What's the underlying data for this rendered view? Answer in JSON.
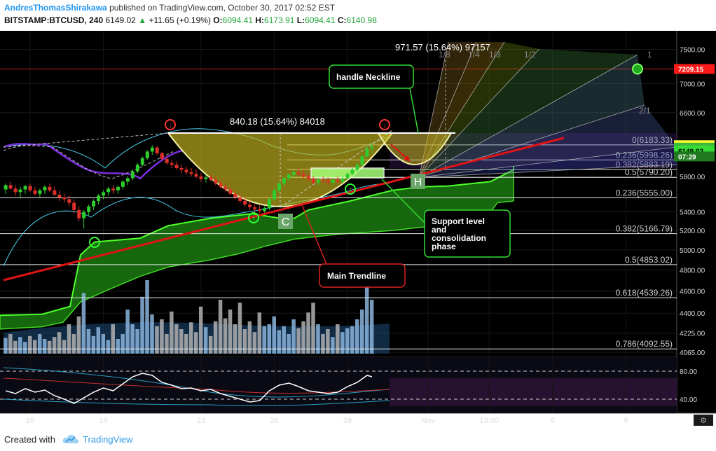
{
  "header": {
    "author": "AndresThomasShirakawa",
    "published": "published on TradingView.com, October 30, 2017 02:52 EST",
    "symbol": "BITSTAMP:BTCUSD, 240",
    "last": "6149.02",
    "change": "+11.65 (+0.19%)",
    "o_label": "O:",
    "o_value": "6094.41",
    "h_label": "H:",
    "h_value": "6173.91",
    "l_label": "L:",
    "l_value": "6094.41",
    "c_label": "C:",
    "c_value": "6140.98"
  },
  "footer": {
    "created_with": "Created with",
    "brand": "TradingView"
  },
  "colors": {
    "background": "#000000",
    "cloud": "#1a7a10",
    "cloud_edge": "#4cff2a",
    "trendline": "#e01414",
    "cup": "#c9b81e",
    "candle_up": "#2ecc2e",
    "candle_down": "#e0302a",
    "rsi_line": "#ffffff",
    "price_label_bg": "#ffff33",
    "alert_bg": "#ff1a1a"
  },
  "chart_data": {
    "type": "candlestick",
    "price_axis": {
      "scale": "log",
      "range": [
        4065,
        7700
      ],
      "ticks": [
        "7500.00",
        "7000.00",
        "6600.00",
        "5800.00",
        "5400.00",
        "5200.00",
        "5000.00",
        "4800.00",
        "4600.00",
        "4400.00",
        "4225.00",
        "4065.00"
      ]
    },
    "price_labels": [
      {
        "text": "7209.15",
        "price": 7209.15,
        "bg": "#ff1a1a",
        "color": "#ffffff"
      },
      {
        "text": "6179.66",
        "price": 6179.66,
        "bg": "#ffff33",
        "color": "#000000"
      },
      {
        "text": "BTCUSD",
        "price": 6149.02,
        "bg": "#3cba3c",
        "color": "#ffffff"
      },
      {
        "text": "6149.02",
        "price": 6110,
        "bg": "#33dd33",
        "color": "#000000"
      },
      {
        "text": "07:29",
        "price": 6040,
        "bg": "#1f7a1f",
        "color": "#ffffff"
      }
    ],
    "time_axis": {
      "labels": [
        {
          "text": "16",
          "x_day": 16
        },
        {
          "text": "19",
          "x_day": 19
        },
        {
          "text": "23",
          "x_day": 23
        },
        {
          "text": "26",
          "x_day": 26
        },
        {
          "text": "29",
          "x_day": 29
        },
        {
          "text": "Nov",
          "x_day": 32.3
        },
        {
          "text": "13:00",
          "x_day": 34.8
        },
        {
          "text": "6",
          "x_day": 37.4
        },
        {
          "text": "9",
          "x_day": 40.4
        }
      ]
    },
    "fib_levels": [
      {
        "label": "0(6183.33)",
        "price": 6183.33
      },
      {
        "label": "0.236(5998.26)",
        "price": 5998.26
      },
      {
        "label": "0.382(5883.19)",
        "price": 5883.19
      },
      {
        "label": "0.5(5790.20)",
        "price": 5790.2
      },
      {
        "label": "0.236(5555.00)",
        "price": 5555.0
      },
      {
        "label": "0.382(5166.79)",
        "price": 5166.79
      },
      {
        "label": "0.5(4853.02)",
        "price": 4853.02
      },
      {
        "label": "0.618(4539.26)",
        "price": 4539.26
      },
      {
        "label": "0.786(4092.55)",
        "price": 4092.55
      }
    ],
    "measurements": [
      {
        "text": "840.18 (15.64%) 84018",
        "x_day": 26.0,
        "price": 6500
      },
      {
        "text": "971.57 (15.64%) 97157",
        "x_day": 31.2,
        "price": 7470
      }
    ],
    "fan_labels": [
      "1/8",
      "1/4",
      "1/3",
      "1/2",
      "1",
      "2/1"
    ],
    "callouts": [
      {
        "text": "handle Neckline"
      },
      {
        "text": "Support level and consolidation phase"
      },
      {
        "text": "Main Trendline"
      }
    ],
    "pattern_letters": [
      "C",
      "H"
    ],
    "rsi": {
      "ticks": [
        "80.00",
        "40.00"
      ],
      "range": [
        20,
        100
      ]
    },
    "candles": [
      [
        15.0,
        5650,
        5720,
        5600,
        5700
      ],
      [
        15.2,
        5700,
        5740,
        5650,
        5660
      ],
      [
        15.4,
        5660,
        5700,
        5580,
        5620
      ],
      [
        15.6,
        5620,
        5680,
        5560,
        5650
      ],
      [
        15.8,
        5650,
        5700,
        5600,
        5690
      ],
      [
        16.0,
        5690,
        5720,
        5620,
        5640
      ],
      [
        16.2,
        5640,
        5680,
        5580,
        5600
      ],
      [
        16.4,
        5600,
        5660,
        5560,
        5640
      ],
      [
        16.6,
        5640,
        5700,
        5600,
        5680
      ],
      [
        16.8,
        5680,
        5720,
        5620,
        5640
      ],
      [
        17.0,
        5640,
        5680,
        5580,
        5590
      ],
      [
        17.2,
        5590,
        5640,
        5520,
        5560
      ],
      [
        17.4,
        5560,
        5600,
        5500,
        5540
      ],
      [
        17.6,
        5540,
        5580,
        5460,
        5500
      ],
      [
        17.8,
        5500,
        5540,
        5380,
        5420
      ],
      [
        18.0,
        5420,
        5460,
        5300,
        5330
      ],
      [
        18.2,
        5330,
        5420,
        5220,
        5400
      ],
      [
        18.4,
        5400,
        5480,
        5360,
        5460
      ],
      [
        18.6,
        5460,
        5540,
        5420,
        5520
      ],
      [
        18.8,
        5520,
        5600,
        5480,
        5580
      ],
      [
        19.0,
        5580,
        5640,
        5540,
        5620
      ],
      [
        19.2,
        5620,
        5680,
        5580,
        5660
      ],
      [
        19.4,
        5660,
        5700,
        5600,
        5640
      ],
      [
        19.6,
        5640,
        5700,
        5600,
        5680
      ],
      [
        19.8,
        5680,
        5760,
        5650,
        5740
      ],
      [
        20.0,
        5740,
        5800,
        5700,
        5780
      ],
      [
        20.2,
        5780,
        5880,
        5760,
        5860
      ],
      [
        20.4,
        5860,
        5960,
        5840,
        5940
      ],
      [
        20.6,
        5940,
        6040,
        5920,
        6020
      ],
      [
        20.8,
        6020,
        6120,
        6000,
        6100
      ],
      [
        21.0,
        6100,
        6180,
        6060,
        6150
      ],
      [
        21.2,
        6150,
        6170,
        6060,
        6080
      ],
      [
        21.4,
        6080,
        6100,
        5990,
        6010
      ],
      [
        21.6,
        6010,
        6040,
        5940,
        5960
      ],
      [
        21.8,
        5960,
        6000,
        5900,
        5940
      ],
      [
        22.0,
        5940,
        5980,
        5880,
        5900
      ],
      [
        22.2,
        5900,
        5940,
        5840,
        5880
      ],
      [
        22.4,
        5880,
        5920,
        5820,
        5850
      ],
      [
        22.6,
        5850,
        5900,
        5800,
        5830
      ],
      [
        22.8,
        5830,
        5880,
        5780,
        5800
      ],
      [
        23.0,
        5800,
        5840,
        5740,
        5770
      ],
      [
        23.2,
        5770,
        5820,
        5730,
        5790
      ],
      [
        23.4,
        5790,
        5830,
        5740,
        5760
      ],
      [
        23.6,
        5760,
        5800,
        5700,
        5720
      ],
      [
        23.8,
        5720,
        5760,
        5660,
        5680
      ],
      [
        24.0,
        5680,
        5720,
        5620,
        5650
      ],
      [
        24.2,
        5650,
        5680,
        5580,
        5600
      ],
      [
        24.4,
        5600,
        5640,
        5540,
        5560
      ],
      [
        24.6,
        5560,
        5600,
        5500,
        5520
      ],
      [
        24.8,
        5520,
        5560,
        5460,
        5480
      ],
      [
        25.0,
        5480,
        5520,
        5420,
        5450
      ],
      [
        25.2,
        5450,
        5480,
        5400,
        5430
      ],
      [
        25.4,
        5430,
        5470,
        5390,
        5410
      ],
      [
        25.6,
        5410,
        5460,
        5390,
        5440
      ],
      [
        25.8,
        5440,
        5560,
        5420,
        5540
      ],
      [
        26.0,
        5540,
        5660,
        5520,
        5640
      ],
      [
        26.2,
        5640,
        5740,
        5620,
        5720
      ],
      [
        26.4,
        5720,
        5800,
        5690,
        5780
      ],
      [
        26.6,
        5780,
        5840,
        5740,
        5820
      ],
      [
        26.8,
        5820,
        5880,
        5780,
        5850
      ],
      [
        27.0,
        5850,
        5900,
        5800,
        5830
      ],
      [
        27.2,
        5830,
        5880,
        5780,
        5800
      ],
      [
        27.4,
        5800,
        5840,
        5750,
        5770
      ],
      [
        27.6,
        5770,
        5800,
        5710,
        5730
      ],
      [
        27.8,
        5730,
        5780,
        5700,
        5760
      ],
      [
        28.0,
        5760,
        5800,
        5720,
        5750
      ],
      [
        28.2,
        5750,
        5790,
        5700,
        5730
      ],
      [
        28.4,
        5730,
        5780,
        5700,
        5760
      ],
      [
        28.6,
        5760,
        5800,
        5720,
        5740
      ],
      [
        28.8,
        5740,
        5800,
        5720,
        5780
      ],
      [
        29.0,
        5780,
        5850,
        5760,
        5830
      ],
      [
        29.2,
        5830,
        5900,
        5810,
        5880
      ],
      [
        29.4,
        5880,
        5960,
        5860,
        5940
      ],
      [
        29.6,
        5940,
        6060,
        5920,
        6040
      ],
      [
        29.8,
        6040,
        6160,
        6020,
        6140
      ],
      [
        30.0,
        6140,
        6200,
        6080,
        6160
      ]
    ],
    "volume": [
      [
        15.0,
        0.16
      ],
      [
        15.2,
        0.2
      ],
      [
        15.4,
        0.13
      ],
      [
        15.6,
        0.17
      ],
      [
        15.8,
        0.12
      ],
      [
        16.0,
        0.18
      ],
      [
        16.2,
        0.14
      ],
      [
        16.4,
        0.2
      ],
      [
        16.6,
        0.15
      ],
      [
        16.8,
        0.13
      ],
      [
        17.0,
        0.17
      ],
      [
        17.2,
        0.22
      ],
      [
        17.4,
        0.14
      ],
      [
        17.6,
        0.3
      ],
      [
        17.8,
        0.2
      ],
      [
        18.0,
        0.38
      ],
      [
        18.2,
        0.62
      ],
      [
        18.4,
        0.25
      ],
      [
        18.6,
        0.18
      ],
      [
        18.8,
        0.27
      ],
      [
        19.0,
        0.2
      ],
      [
        19.2,
        0.14
      ],
      [
        19.4,
        0.3
      ],
      [
        19.6,
        0.15
      ],
      [
        19.8,
        0.2
      ],
      [
        20.0,
        0.45
      ],
      [
        20.2,
        0.3
      ],
      [
        20.4,
        0.25
      ],
      [
        20.6,
        0.58
      ],
      [
        20.8,
        0.75
      ],
      [
        21.0,
        0.4
      ],
      [
        21.2,
        0.28
      ],
      [
        21.4,
        0.35
      ],
      [
        21.6,
        0.2
      ],
      [
        21.8,
        0.43
      ],
      [
        22.0,
        0.3
      ],
      [
        22.2,
        0.25
      ],
      [
        22.4,
        0.2
      ],
      [
        22.6,
        0.32
      ],
      [
        22.8,
        0.22
      ],
      [
        23.0,
        0.48
      ],
      [
        23.2,
        0.27
      ],
      [
        23.4,
        0.18
      ],
      [
        23.6,
        0.33
      ],
      [
        23.8,
        0.55
      ],
      [
        24.0,
        0.36
      ],
      [
        24.2,
        0.45
      ],
      [
        24.4,
        0.3
      ],
      [
        24.6,
        0.52
      ],
      [
        24.8,
        0.25
      ],
      [
        25.0,
        0.33
      ],
      [
        25.2,
        0.22
      ],
      [
        25.4,
        0.42
      ],
      [
        25.6,
        0.28
      ],
      [
        25.8,
        0.3
      ],
      [
        26.0,
        0.38
      ],
      [
        26.2,
        0.24
      ],
      [
        26.4,
        0.28
      ],
      [
        26.6,
        0.2
      ],
      [
        26.8,
        0.35
      ],
      [
        27.0,
        0.26
      ],
      [
        27.2,
        0.33
      ],
      [
        27.4,
        0.42
      ],
      [
        27.6,
        0.52
      ],
      [
        27.8,
        0.3
      ],
      [
        28.0,
        0.2
      ],
      [
        28.2,
        0.25
      ],
      [
        28.4,
        0.17
      ],
      [
        28.6,
        0.3
      ],
      [
        28.8,
        0.22
      ],
      [
        29.0,
        0.26
      ],
      [
        29.2,
        0.28
      ],
      [
        29.4,
        0.35
      ],
      [
        29.6,
        0.45
      ],
      [
        29.8,
        0.8
      ],
      [
        30.0,
        0.55
      ]
    ],
    "rsi_values": [
      [
        15.0,
        52
      ],
      [
        15.4,
        48
      ],
      [
        15.8,
        55
      ],
      [
        16.2,
        50
      ],
      [
        16.6,
        53
      ],
      [
        17.0,
        45
      ],
      [
        17.4,
        40
      ],
      [
        17.8,
        34
      ],
      [
        18.2,
        42
      ],
      [
        18.6,
        50
      ],
      [
        19.0,
        56
      ],
      [
        19.4,
        52
      ],
      [
        19.8,
        62
      ],
      [
        20.2,
        72
      ],
      [
        20.6,
        77
      ],
      [
        21.0,
        74
      ],
      [
        21.4,
        64
      ],
      [
        21.8,
        60
      ],
      [
        22.2,
        55
      ],
      [
        22.6,
        56
      ],
      [
        23.0,
        52
      ],
      [
        23.4,
        54
      ],
      [
        23.8,
        48
      ],
      [
        24.2,
        44
      ],
      [
        24.6,
        40
      ],
      [
        25.0,
        36
      ],
      [
        25.4,
        38
      ],
      [
        25.8,
        52
      ],
      [
        26.2,
        60
      ],
      [
        26.6,
        63
      ],
      [
        27.0,
        58
      ],
      [
        27.4,
        52
      ],
      [
        27.8,
        50
      ],
      [
        28.2,
        48
      ],
      [
        28.6,
        50
      ],
      [
        29.0,
        58
      ],
      [
        29.4,
        64
      ],
      [
        29.8,
        74
      ],
      [
        30.0,
        72
      ]
    ]
  }
}
